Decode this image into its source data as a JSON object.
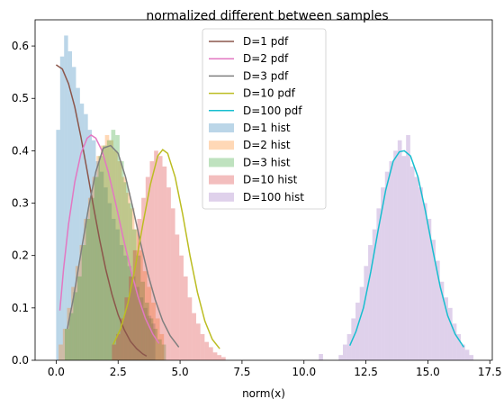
{
  "chart_data": {
    "type": "histogram",
    "title": "normalized different between samples",
    "xlabel": "norm(x)",
    "ylabel": "",
    "xlim": [
      -0.85,
      17.6
    ],
    "ylim": [
      0,
      0.65
    ],
    "xticks": [
      0.0,
      2.5,
      5.0,
      7.5,
      10.0,
      12.5,
      15.0,
      17.5
    ],
    "xtick_labels": [
      "0.0",
      "2.5",
      "5.0",
      "7.5",
      "10.0",
      "12.5",
      "15.0",
      "17.5"
    ],
    "yticks": [
      0.0,
      0.1,
      0.2,
      0.3,
      0.4,
      0.5,
      0.6
    ],
    "ytick_labels": [
      "0.0",
      "0.1",
      "0.2",
      "0.3",
      "0.4",
      "0.5",
      "0.6"
    ],
    "grid": false,
    "legend_position": "top-center",
    "series": [
      {
        "name": "D=1 pdf",
        "kind": "line",
        "color": "#8c564b",
        "x": [
          0.0,
          0.25,
          0.5,
          0.75,
          1.0,
          1.25,
          1.5,
          1.75,
          2.0,
          2.25,
          2.5,
          2.75,
          3.0,
          3.25,
          3.5,
          3.65
        ],
        "y": [
          0.564,
          0.556,
          0.528,
          0.484,
          0.426,
          0.362,
          0.295,
          0.231,
          0.174,
          0.126,
          0.087,
          0.058,
          0.036,
          0.022,
          0.012,
          0.008
        ]
      },
      {
        "name": "D=2 pdf",
        "kind": "line",
        "color": "#e377c2",
        "x": [
          0.15,
          0.3,
          0.5,
          0.75,
          1.0,
          1.25,
          1.41,
          1.6,
          1.85,
          2.1,
          2.4,
          2.7,
          3.0,
          3.3,
          3.6,
          3.9,
          4.15
        ],
        "y": [
          0.095,
          0.175,
          0.26,
          0.34,
          0.395,
          0.424,
          0.43,
          0.424,
          0.4,
          0.36,
          0.3,
          0.235,
          0.175,
          0.122,
          0.08,
          0.05,
          0.032
        ]
      },
      {
        "name": "D=3 pdf",
        "kind": "line",
        "color": "#7f7f7f",
        "x": [
          0.45,
          0.7,
          1.0,
          1.3,
          1.6,
          1.9,
          2.2,
          2.5,
          2.8,
          3.1,
          3.4,
          3.7,
          4.0,
          4.3,
          4.6,
          4.95
        ],
        "y": [
          0.06,
          0.12,
          0.205,
          0.29,
          0.36,
          0.405,
          0.41,
          0.395,
          0.35,
          0.29,
          0.225,
          0.165,
          0.115,
          0.075,
          0.047,
          0.025
        ]
      },
      {
        "name": "D=10 pdf",
        "kind": "line",
        "color": "#bcbd22",
        "x": [
          2.3,
          2.6,
          2.9,
          3.2,
          3.5,
          3.8,
          4.1,
          4.3,
          4.5,
          4.8,
          5.1,
          5.4,
          5.7,
          6.0,
          6.3,
          6.6
        ],
        "y": [
          0.03,
          0.06,
          0.11,
          0.18,
          0.26,
          0.335,
          0.39,
          0.402,
          0.395,
          0.35,
          0.28,
          0.2,
          0.13,
          0.075,
          0.04,
          0.022
        ]
      },
      {
        "name": "D=100 pdf",
        "kind": "line",
        "color": "#17becf",
        "x": [
          11.85,
          12.1,
          12.4,
          12.7,
          13.0,
          13.3,
          13.6,
          13.85,
          14.05,
          14.3,
          14.6,
          14.9,
          15.2,
          15.5,
          15.8,
          16.1,
          16.45
        ],
        "y": [
          0.028,
          0.055,
          0.1,
          0.17,
          0.25,
          0.325,
          0.38,
          0.398,
          0.4,
          0.39,
          0.35,
          0.285,
          0.21,
          0.14,
          0.085,
          0.05,
          0.025
        ]
      },
      {
        "name": "D=1 hist",
        "kind": "hist",
        "color": "#1f77b4",
        "alpha": 0.3,
        "edges_start": 0.0,
        "bin_width": 0.16,
        "values": [
          0.44,
          0.58,
          0.62,
          0.59,
          0.56,
          0.52,
          0.49,
          0.47,
          0.44,
          0.42,
          0.38,
          0.36,
          0.33,
          0.3,
          0.27,
          0.25,
          0.22,
          0.2,
          0.18,
          0.16,
          0.14,
          0.12,
          0.1,
          0.085,
          0.07
        ]
      },
      {
        "name": "D=2 hist",
        "kind": "hist",
        "color": "#ff7f0e",
        "alpha": 0.3,
        "edges_start": 0.1,
        "bin_width": 0.17,
        "values": [
          0.03,
          0.06,
          0.1,
          0.14,
          0.18,
          0.22,
          0.27,
          0.31,
          0.35,
          0.39,
          0.41,
          0.43,
          0.42,
          0.4,
          0.38,
          0.35,
          0.32,
          0.29,
          0.25,
          0.21,
          0.17,
          0.14,
          0.11,
          0.08,
          0.05
        ]
      },
      {
        "name": "D=3 hist",
        "kind": "hist",
        "color": "#2ca02c",
        "alpha": 0.3,
        "edges_start": 0.35,
        "bin_width": 0.17,
        "values": [
          0.06,
          0.09,
          0.13,
          0.16,
          0.22,
          0.27,
          0.31,
          0.35,
          0.39,
          0.41,
          0.42,
          0.44,
          0.43,
          0.38,
          0.34,
          0.3,
          0.25,
          0.2,
          0.15,
          0.11,
          0.08,
          0.06,
          0.04,
          0.03
        ]
      },
      {
        "name": "D=10 hist",
        "kind": "hist",
        "color": "#d62728",
        "alpha": 0.3,
        "edges_start": 2.25,
        "bin_width": 0.17,
        "values": [
          0.03,
          0.05,
          0.08,
          0.12,
          0.16,
          0.21,
          0.27,
          0.31,
          0.35,
          0.38,
          0.4,
          0.39,
          0.37,
          0.33,
          0.29,
          0.24,
          0.2,
          0.16,
          0.12,
          0.09,
          0.07,
          0.05,
          0.035,
          0.025,
          0.015,
          0.01,
          0.006
        ]
      },
      {
        "name": "D=100 hist",
        "kind": "hist",
        "color": "#9467bd",
        "alpha": 0.3,
        "edges_start": 11.4,
        "bin_width": 0.17,
        "values": [
          0.01,
          0.03,
          0.05,
          0.08,
          0.11,
          0.14,
          0.18,
          0.22,
          0.25,
          0.29,
          0.33,
          0.36,
          0.38,
          0.4,
          0.42,
          0.39,
          0.43,
          0.37,
          0.35,
          0.33,
          0.3,
          0.27,
          0.23,
          0.19,
          0.15,
          0.12,
          0.1,
          0.07,
          0.05,
          0.03,
          0.02,
          0.01
        ]
      }
    ],
    "extra_bars": [
      {
        "series": "D=100 hist",
        "x": 10.6,
        "width": 0.17,
        "value": 0.012
      }
    ]
  }
}
